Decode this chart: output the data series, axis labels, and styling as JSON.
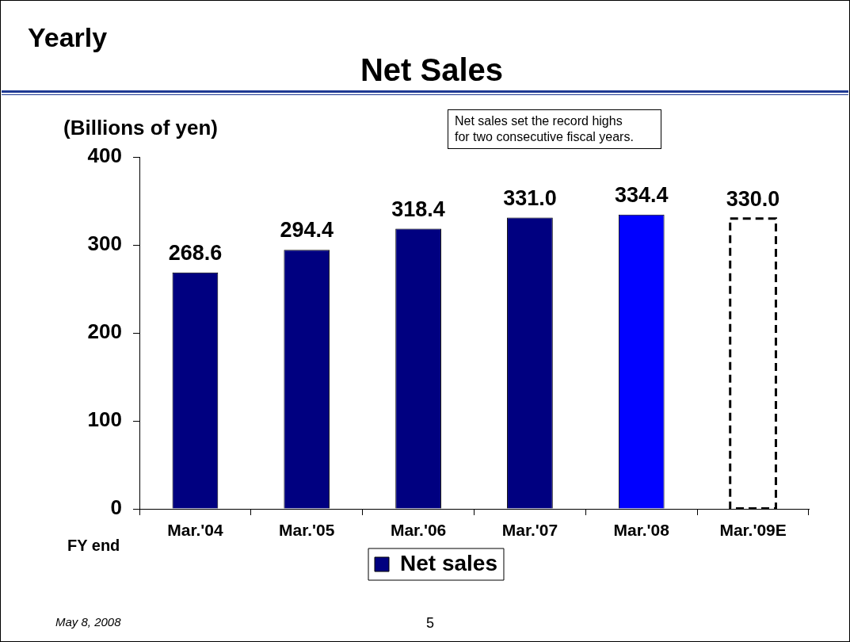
{
  "chart_data": {
    "type": "bar",
    "title": "Net Sales",
    "subtitle": "Yearly",
    "ylabel": "(Billions of yen)",
    "categories": [
      "Mar.'04",
      "Mar.'05",
      "Mar.'06",
      "Mar.'07",
      "Mar.'08",
      "Mar.'09E"
    ],
    "series": [
      {
        "name": "Net sales",
        "color": "#000080",
        "colors": [
          "#000080",
          "#000080",
          "#000080",
          "#000080",
          "#0000ff",
          null
        ],
        "values": [
          268.6,
          294.4,
          318.4,
          331.0,
          334.4,
          null
        ],
        "value_labels": [
          "268.6",
          "294.4",
          "318.4",
          "331.0",
          "334.4",
          null
        ]
      },
      {
        "color": "#ffffff",
        "line_style": "dashed",
        "values": [
          null,
          null,
          null,
          null,
          null,
          330.0
        ],
        "value_labels": [
          null,
          null,
          null,
          null,
          null,
          "330.0"
        ]
      }
    ],
    "ylim": [
      0,
      400
    ],
    "yticks": [
      0,
      100,
      200,
      300,
      400
    ],
    "grid": false,
    "legend": "bottom",
    "annotations": [
      "Net sales set the record highs\nfor two consecutive fiscal years.",
      "FY end",
      "May 8, 2008",
      "5"
    ]
  }
}
